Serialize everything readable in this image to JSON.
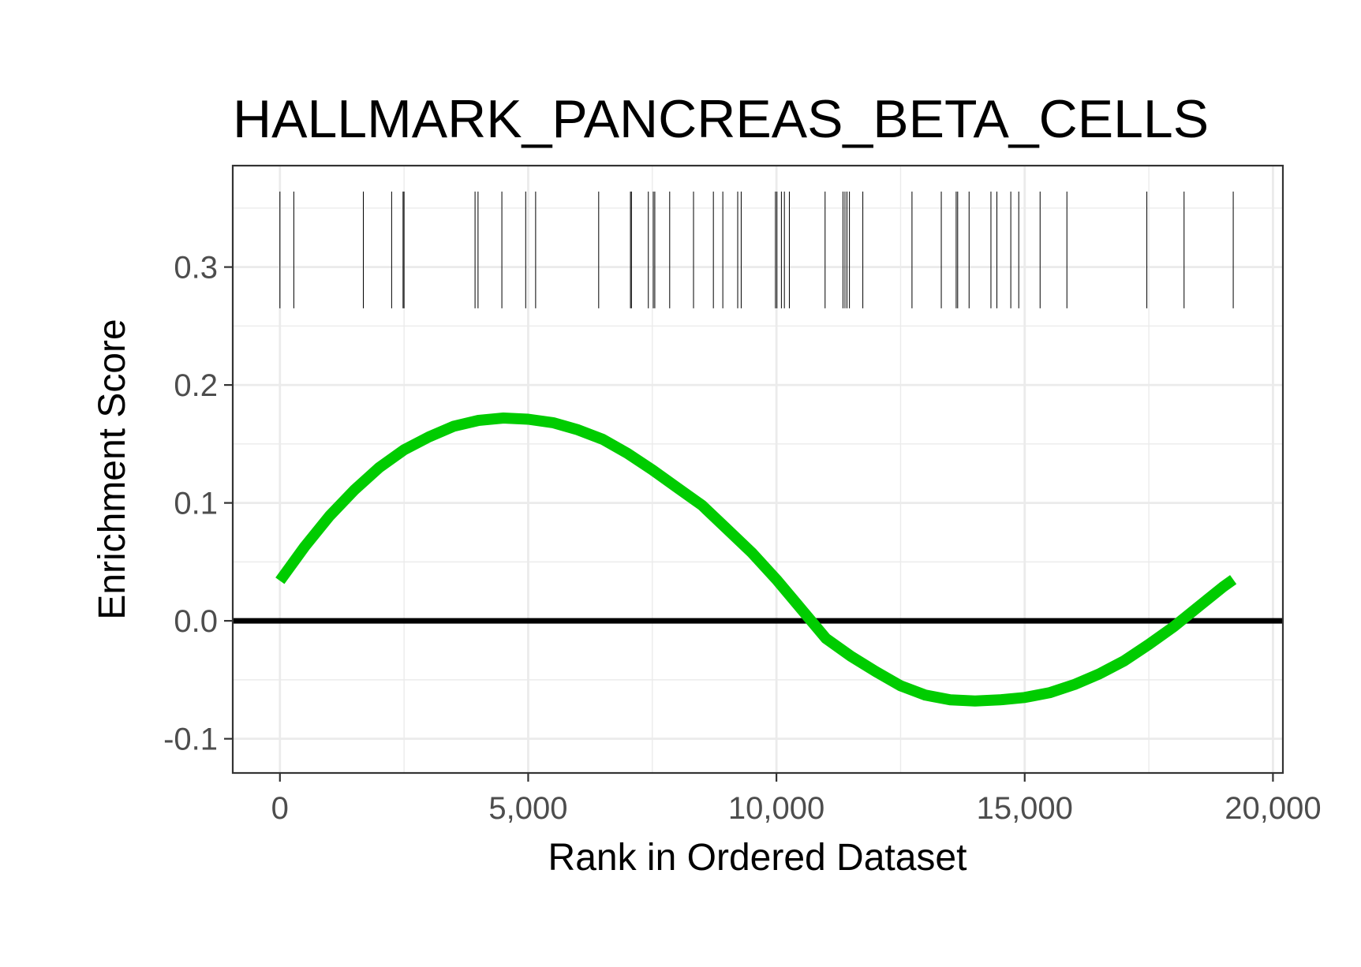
{
  "chart_data": {
    "type": "line",
    "title": "HALLMARK_PANCREAS_BETA_CELLS",
    "xlabel": "Rank in Ordered Dataset",
    "ylabel": "Enrichment Score",
    "xlim": [
      -950,
      20200
    ],
    "ylim": [
      -0.129,
      0.386
    ],
    "x_ticks": [
      0,
      5000,
      10000,
      15000,
      20000
    ],
    "x_tick_labels": [
      "0",
      "5,000",
      "10,000",
      "15,000",
      "20,000"
    ],
    "y_ticks": [
      -0.1,
      0.0,
      0.1,
      0.2,
      0.3
    ],
    "y_tick_labels": [
      "-0.1",
      "0.0",
      "0.1",
      "0.2",
      "0.3"
    ],
    "grid": true,
    "legend": "none",
    "colors": {
      "curve": "#00cc00",
      "zero_line": "#000000",
      "hits": "#000000"
    },
    "series": [
      {
        "x": [
          0,
          500,
          1000,
          1500,
          2000,
          2500,
          3000,
          3500,
          4000,
          4500,
          5000,
          5500,
          6000,
          6500,
          7000,
          7500,
          8000,
          8500,
          9000,
          9500,
          10000,
          10500,
          11000,
          11500,
          12000,
          12500,
          13000,
          13500,
          14000,
          14500,
          15000,
          15500,
          16000,
          16500,
          17000,
          17500,
          18000,
          18500,
          19000,
          19200
        ],
        "values": [
          0.034,
          0.063,
          0.089,
          0.111,
          0.13,
          0.145,
          0.156,
          0.165,
          0.17,
          0.172,
          0.171,
          0.168,
          0.162,
          0.154,
          0.142,
          0.128,
          0.113,
          0.098,
          0.078,
          0.058,
          0.035,
          0.01,
          -0.015,
          -0.03,
          -0.043,
          -0.055,
          -0.063,
          -0.067,
          -0.068,
          -0.067,
          -0.065,
          -0.061,
          -0.054,
          -0.045,
          -0.034,
          -0.02,
          -0.005,
          0.012,
          0.029,
          0.035
        ]
      }
    ],
    "hline": 0,
    "hit_band": [
      0.265,
      0.364
    ],
    "hits": [
      0,
      280,
      1680,
      2250,
      2480,
      2500,
      3930,
      3990,
      4470,
      4950,
      5150,
      6420,
      7060,
      7080,
      7420,
      7520,
      7550,
      7850,
      8330,
      8730,
      8920,
      9220,
      9290,
      9980,
      10010,
      10100,
      10160,
      10260,
      10980,
      11340,
      11380,
      11420,
      11470,
      11740,
      12730,
      13320,
      13620,
      13650,
      13880,
      14320,
      14440,
      14720,
      14880,
      15310,
      15850,
      17460,
      18210,
      19200
    ]
  }
}
